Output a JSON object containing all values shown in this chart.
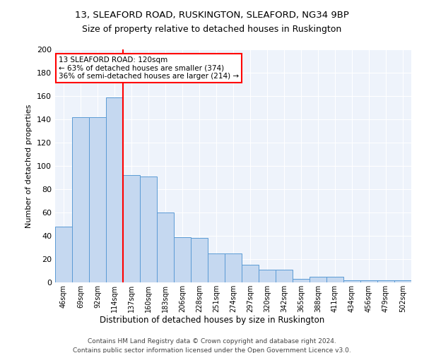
{
  "title1": "13, SLEAFORD ROAD, RUSKINGTON, SLEAFORD, NG34 9BP",
  "title2": "Size of property relative to detached houses in Ruskington",
  "xlabel": "Distribution of detached houses by size in Ruskington",
  "ylabel": "Number of detached properties",
  "categories": [
    "46sqm",
    "69sqm",
    "92sqm",
    "114sqm",
    "137sqm",
    "160sqm",
    "183sqm",
    "206sqm",
    "228sqm",
    "251sqm",
    "274sqm",
    "297sqm",
    "320sqm",
    "342sqm",
    "365sqm",
    "388sqm",
    "411sqm",
    "434sqm",
    "456sqm",
    "479sqm",
    "502sqm"
  ],
  "values": [
    48,
    142,
    142,
    159,
    92,
    91,
    60,
    39,
    38,
    25,
    25,
    15,
    11,
    11,
    3,
    5,
    5,
    2,
    2,
    2,
    2
  ],
  "bar_color": "#c5d8f0",
  "bar_edge_color": "#5b9bd5",
  "vline_x": 3.5,
  "vline_color": "red",
  "annotation_title": "13 SLEAFORD ROAD: 120sqm",
  "annotation_line1": "← 63% of detached houses are smaller (374)",
  "annotation_line2": "36% of semi-detached houses are larger (214) →",
  "annotation_box_color": "white",
  "annotation_box_edge": "red",
  "footer1": "Contains HM Land Registry data © Crown copyright and database right 2024.",
  "footer2": "Contains public sector information licensed under the Open Government Licence v3.0.",
  "ylim": [
    0,
    200
  ],
  "yticks": [
    0,
    20,
    40,
    60,
    80,
    100,
    120,
    140,
    160,
    180,
    200
  ],
  "background_color": "#eef3fb",
  "grid_color": "#ffffff"
}
